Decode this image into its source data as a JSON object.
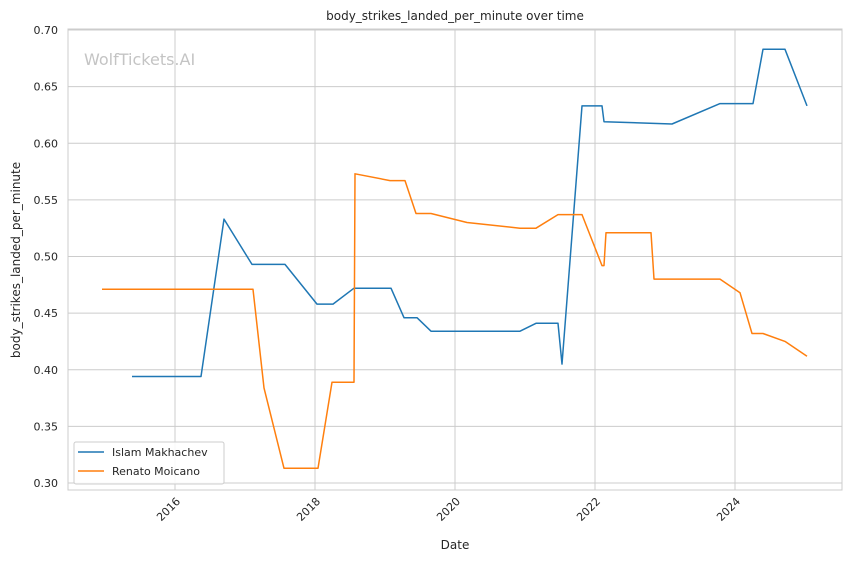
{
  "chart_data": {
    "type": "line",
    "title": "body_strikes_landed_per_minute over time",
    "xlabel": "Date",
    "ylabel": "body_strikes_landed_per_minute",
    "watermark": "WolfTickets.AI",
    "xlim": [
      2014.5,
      2025.6
    ],
    "ylim": [
      0.294,
      0.701
    ],
    "xticks": [
      2016,
      2018,
      2020,
      2022,
      2024
    ],
    "xtick_labels": [
      "2016",
      "2018",
      "2020",
      "2022",
      "2024"
    ],
    "yticks": [
      0.3,
      0.35,
      0.4,
      0.45,
      0.5,
      0.55,
      0.6,
      0.65,
      0.7
    ],
    "ytick_labels": [
      "0.30",
      "0.35",
      "0.40",
      "0.45",
      "0.50",
      "0.55",
      "0.60",
      "0.65",
      "0.70"
    ],
    "grid": true,
    "legend_position": "lower-left",
    "series": [
      {
        "name": "Islam Makhachev",
        "color": "#1f77b4",
        "x": [
          2015.386,
          2016.371,
          2016.7,
          2017.1,
          2017.571,
          2018.029,
          2018.257,
          2018.557,
          2019.086,
          2019.271,
          2019.457,
          2019.657,
          2020.929,
          2021.157,
          2021.471,
          2021.529,
          2021.814,
          2022.1,
          2022.129,
          2023.1,
          2023.786,
          2024.257,
          2024.4,
          2024.714,
          2025.029
        ],
        "y": [
          0.394,
          0.394,
          0.533,
          0.493,
          0.493,
          0.458,
          0.458,
          0.472,
          0.472,
          0.446,
          0.446,
          0.434,
          0.434,
          0.441,
          0.441,
          0.405,
          0.633,
          0.633,
          0.619,
          0.617,
          0.635,
          0.635,
          0.683,
          0.683,
          0.633
        ]
      },
      {
        "name": "Renato Moicano",
        "color": "#ff7f0e",
        "x": [
          2014.957,
          2017.114,
          2017.271,
          2017.557,
          2018.043,
          2018.243,
          2018.557,
          2018.571,
          2019.071,
          2019.286,
          2019.443,
          2019.657,
          2020.171,
          2020.929,
          2021.157,
          2021.471,
          2021.814,
          2022.1,
          2022.129,
          2022.157,
          2022.8,
          2022.843,
          2023.786,
          2024.071,
          2024.243,
          2024.4,
          2024.714,
          2025.029
        ],
        "y": [
          0.471,
          0.471,
          0.384,
          0.313,
          0.313,
          0.389,
          0.389,
          0.573,
          0.567,
          0.567,
          0.538,
          0.538,
          0.53,
          0.525,
          0.525,
          0.537,
          0.537,
          0.492,
          0.492,
          0.521,
          0.521,
          0.48,
          0.48,
          0.468,
          0.432,
          0.432,
          0.425,
          0.412
        ]
      }
    ]
  }
}
